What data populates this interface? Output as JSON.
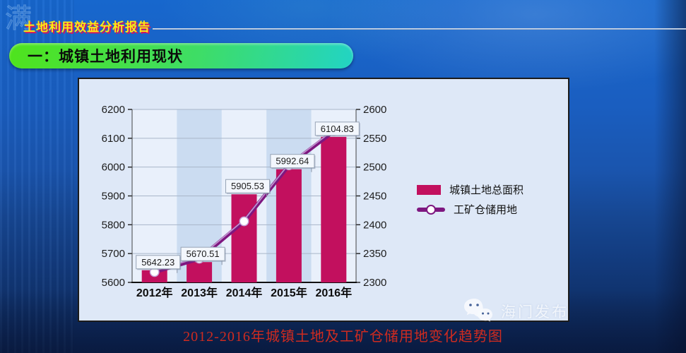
{
  "header": {
    "report_title": "土地利用效益分析报告",
    "corner_glyph": "满"
  },
  "section_banner": {
    "label": "一：城镇土地利用现状"
  },
  "chart_data": {
    "type": "combo-bar-line",
    "categories": [
      "2012年",
      "2013年",
      "2014年",
      "2015年",
      "2016年"
    ],
    "series": [
      {
        "name": "城镇土地总面积",
        "type": "bar",
        "axis": "left",
        "values": [
          5642.23,
          5670.51,
          5905.53,
          5992.64,
          6104.83
        ],
        "labels": [
          "5642.23",
          "5670.51",
          "5905.53",
          "5992.64",
          "6104.83"
        ]
      },
      {
        "name": "工矿仓储用地",
        "type": "line",
        "axis": "right",
        "values": [
          2318,
          2341,
          2406,
          2503,
          2562
        ]
      }
    ],
    "left_axis": {
      "min": 5600,
      "max": 6200,
      "step": 100,
      "ticks": [
        "5600",
        "5700",
        "5800",
        "5900",
        "6000",
        "6100",
        "6200"
      ]
    },
    "right_axis": {
      "min": 2300,
      "max": 2600,
      "step": 50,
      "ticks": [
        "2300",
        "2350",
        "2400",
        "2450",
        "2500",
        "2550",
        "2600"
      ]
    },
    "legend_position": "right",
    "grid": true
  },
  "caption": {
    "text": "2012-2016年城镇土地及工矿仓储用地变化趋势图"
  },
  "watermark": {
    "text": "海门发布"
  },
  "colors": {
    "bar": "#C2105E",
    "line": "#7E1780",
    "line_highlight": "#C59FD6",
    "marker_fill": "#FFFFFF",
    "chart_bg": "#DEE8F7",
    "stripe_light": "#E9F0FB",
    "stripe_dark": "#CBDCF1",
    "grid": "#A9B6C9",
    "axis": "#1F1F1F",
    "label_box_bg": "#F3F7FD",
    "label_box_border": "#97A4B6",
    "caption": "#CE2B20",
    "title_yellow": "#FFE913",
    "title_shadow": "#D4155F"
  }
}
